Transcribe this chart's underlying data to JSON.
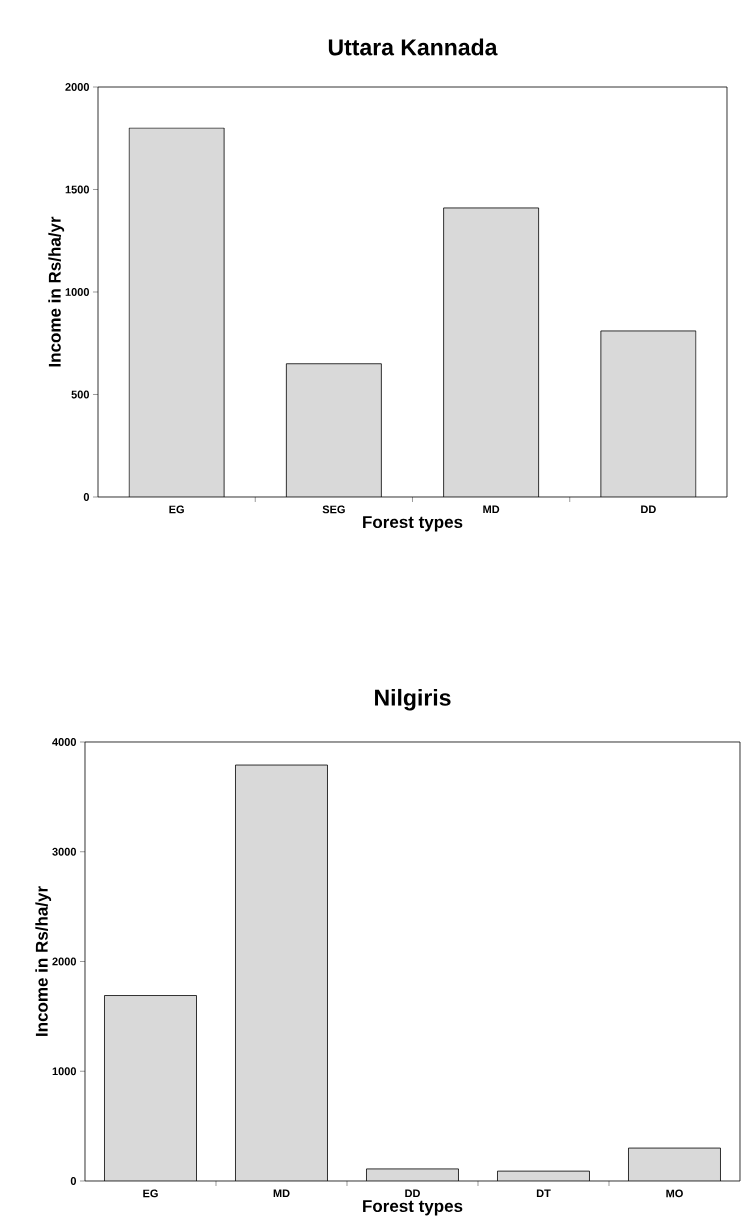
{
  "chart_data": [
    {
      "type": "bar",
      "title": "Uttara Kannada",
      "xlabel": "Forest types",
      "ylabel": "Income in Rs/ha/yr",
      "categories": [
        "EG",
        "SEG",
        "MD",
        "DD"
      ],
      "values": [
        1800,
        650,
        1410,
        810
      ],
      "color": "#d9d9d9",
      "ylim": [
        0,
        2000
      ],
      "yticks": [
        0,
        500,
        1000,
        1500,
        2000
      ],
      "grid": false
    },
    {
      "type": "bar",
      "title": "Nilgiris",
      "xlabel": "Forest types",
      "ylabel": "Income in Rs/ha/yr",
      "categories": [
        "EG",
        "MD",
        "DD",
        "DT",
        "MO"
      ],
      "values": [
        1690,
        3790,
        110,
        90,
        300
      ],
      "color": "#d9d9d9",
      "ylim": [
        0,
        4000
      ],
      "yticks": [
        0,
        1000,
        2000,
        3000,
        4000
      ],
      "grid": false
    }
  ]
}
